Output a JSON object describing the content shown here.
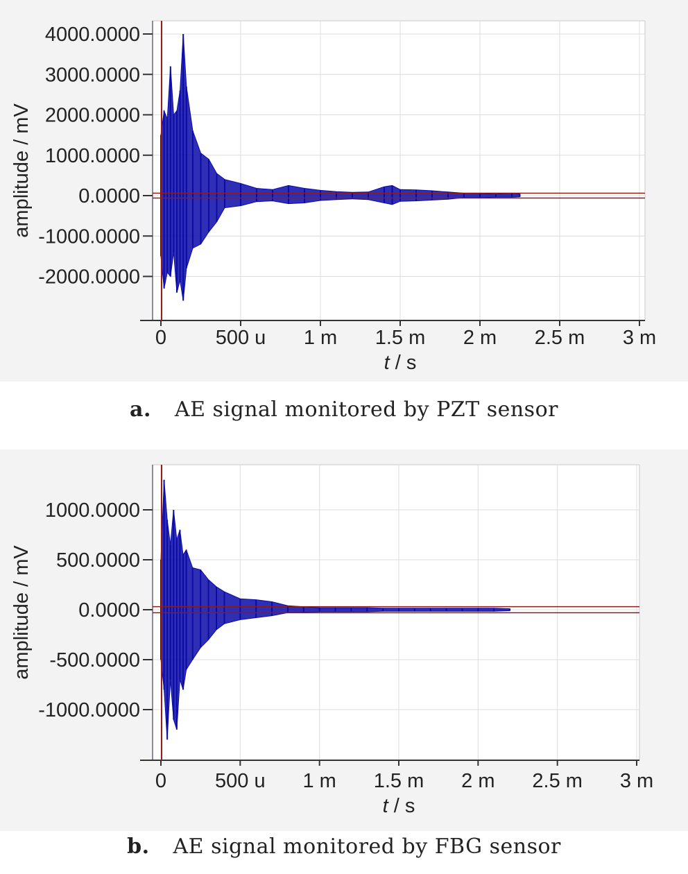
{
  "chart_data": [
    {
      "type": "line",
      "panel_label": "a.",
      "caption": "AE signal monitored by PZT sensor",
      "xlabel_var": "t",
      "xlabel_unit": " / s",
      "ylabel": "amplitude / mV",
      "xlim": [
        0,
        0.003
      ],
      "ylim": [
        -2900,
        4300
      ],
      "x_ticks": [
        {
          "value": 0,
          "label": "0"
        },
        {
          "value": 0.0005,
          "label": "500 u"
        },
        {
          "value": 0.001,
          "label": "1 m"
        },
        {
          "value": 0.0015,
          "label": "1.5 m"
        },
        {
          "value": 0.002,
          "label": "2 m"
        },
        {
          "value": 0.0025,
          "label": "2.5 m"
        },
        {
          "value": 0.003,
          "label": "3 m"
        }
      ],
      "y_ticks": [
        {
          "value": 4000,
          "label": "4000.0000"
        },
        {
          "value": 3000,
          "label": "3000.0000"
        },
        {
          "value": 2000,
          "label": "2000.0000"
        },
        {
          "value": 1000,
          "label": "1000.0000"
        },
        {
          "value": 0,
          "label": "0.0000"
        },
        {
          "value": -1000,
          "label": "-1000.0000"
        },
        {
          "value": -2000,
          "label": "-2000.0000"
        }
      ],
      "trigger_level": 60,
      "grid": true,
      "series": [
        {
          "color": "#0b0ba8",
          "x": [
            0,
            2e-05,
            4e-05,
            6e-05,
            8e-05,
            0.0001,
            0.00012,
            0.00014,
            0.00016,
            0.0002,
            0.00025,
            0.0003,
            0.00035,
            0.0004,
            0.0005,
            0.0006,
            0.0007,
            0.0008,
            0.0009,
            0.001,
            0.0011,
            0.0012,
            0.0013,
            0.0014,
            0.00145,
            0.0015,
            0.0016,
            0.0017,
            0.0018,
            0.0019,
            0.002,
            0.0021,
            0.0022,
            0.00225
          ],
          "upper": [
            1500,
            2100,
            1900,
            3200,
            2000,
            2100,
            2600,
            4000,
            2700,
            1600,
            1050,
            900,
            550,
            400,
            300,
            180,
            150,
            250,
            180,
            130,
            100,
            80,
            90,
            220,
            250,
            150,
            140,
            120,
            90,
            60,
            50,
            40,
            60,
            40
          ],
          "lower": [
            -1500,
            -2300,
            -1900,
            -2000,
            -1400,
            -2400,
            -2100,
            -2600,
            -1800,
            -1300,
            -1200,
            -900,
            -650,
            -300,
            -250,
            -150,
            -130,
            -200,
            -180,
            -120,
            -100,
            -80,
            -100,
            -180,
            -220,
            -140,
            -130,
            -110,
            -90,
            -50,
            -50,
            -40,
            -40,
            -30
          ]
        }
      ]
    },
    {
      "type": "line",
      "panel_label": "b.",
      "caption": "AE signal monitored by FBG sensor",
      "xlabel_var": "t",
      "xlabel_unit": " / s",
      "ylabel": "amplitude / mV",
      "xlim": [
        0,
        0.003
      ],
      "ylim": [
        -1500,
        1500
      ],
      "x_ticks": [
        {
          "value": 0,
          "label": "0"
        },
        {
          "value": 0.0005,
          "label": "500 u"
        },
        {
          "value": 0.001,
          "label": "1 m"
        },
        {
          "value": 0.0015,
          "label": "1.5 m"
        },
        {
          "value": 0.002,
          "label": "2 m"
        },
        {
          "value": 0.0025,
          "label": "2.5 m"
        },
        {
          "value": 0.003,
          "label": "3 m"
        }
      ],
      "y_ticks": [
        {
          "value": 1000,
          "label": "1000.0000"
        },
        {
          "value": 500,
          "label": "500.0000"
        },
        {
          "value": 0,
          "label": "0.0000"
        },
        {
          "value": -500,
          "label": "-500.0000"
        },
        {
          "value": -1000,
          "label": "-1000.0000"
        }
      ],
      "trigger_level": 30,
      "grid": true,
      "series": [
        {
          "color": "#0b0ba8",
          "x": [
            0,
            2e-05,
            4e-05,
            6e-05,
            8e-05,
            0.0001,
            0.00012,
            0.00014,
            0.00016,
            0.0002,
            0.00025,
            0.0003,
            0.00035,
            0.0004,
            0.0005,
            0.0006,
            0.0007,
            0.0008,
            0.0009,
            0.001,
            0.0011,
            0.0012,
            0.0013,
            0.0014,
            0.0015,
            0.0016,
            0.0017,
            0.0018,
            0.0019,
            0.002,
            0.0021,
            0.0022
          ],
          "upper": [
            500,
            1300,
            900,
            650,
            1000,
            700,
            800,
            550,
            600,
            420,
            400,
            300,
            230,
            180,
            110,
            100,
            80,
            40,
            30,
            20,
            20,
            20,
            20,
            15,
            15,
            15,
            15,
            15,
            15,
            15,
            15,
            10
          ],
          "lower": [
            -500,
            -800,
            -1300,
            -700,
            -1100,
            -1200,
            -700,
            -800,
            -600,
            -500,
            -380,
            -300,
            -200,
            -140,
            -100,
            -80,
            -60,
            -30,
            -25,
            -20,
            -20,
            -20,
            -20,
            -15,
            -15,
            -15,
            -15,
            -15,
            -15,
            -15,
            -15,
            -10
          ]
        }
      ]
    }
  ]
}
